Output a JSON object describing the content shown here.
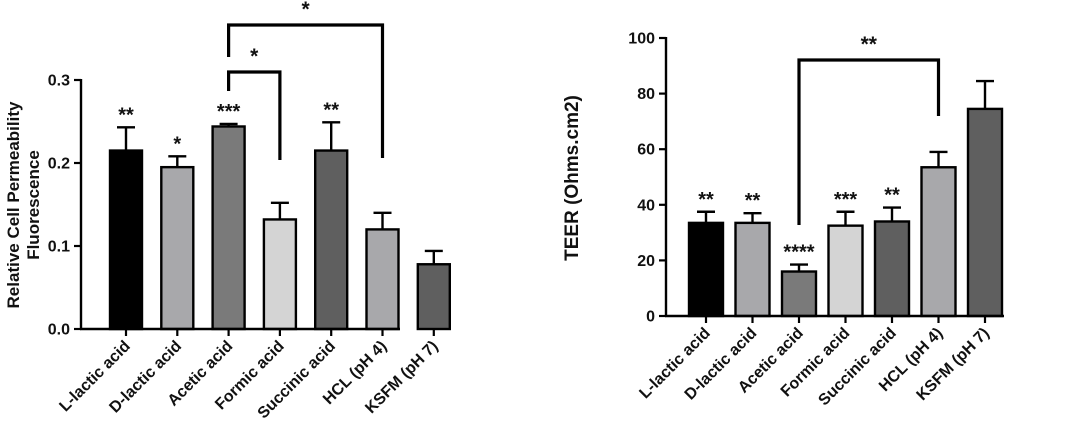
{
  "chart_data": [
    {
      "type": "bar",
      "title": "",
      "ylabel": [
        "Relative Cell Permeability",
        "Fluorescence"
      ],
      "xlabel": "",
      "ylim": [
        0,
        0.3
      ],
      "yticks": [
        "0.0",
        "0.1",
        "0.2",
        "0.3"
      ],
      "ytick_values": [
        0,
        0.1,
        0.2,
        0.3
      ],
      "categories": [
        "L-lactic acid",
        "D-lactic acid",
        "Acetic acid",
        "Formic acid",
        "Succinic acid",
        "HCL (pH 4)",
        "KSFM (pH 7)"
      ],
      "values": [
        0.215,
        0.195,
        0.244,
        0.132,
        0.215,
        0.12,
        0.078
      ],
      "errors": [
        0.028,
        0.013,
        0.003,
        0.02,
        0.034,
        0.02,
        0.016
      ],
      "significance": [
        "**",
        "*",
        "***",
        "",
        "**",
        "",
        ""
      ],
      "colors": [
        "#000000",
        "#a8a8ab",
        "#7a7a7a",
        "#d4d4d4",
        "#5f5f5f",
        "#a8a8ab",
        "#5f5f5f"
      ],
      "brackets": [
        {
          "from": "Acetic acid",
          "to": "Formic acid",
          "label": "*"
        },
        {
          "from": "Acetic acid",
          "to": "HCL (pH 4)",
          "label": "*"
        }
      ]
    },
    {
      "type": "bar",
      "title": "",
      "ylabel": "TEER (Ohms.cm2)",
      "xlabel": "",
      "ylim": [
        0,
        100
      ],
      "yticks": [
        "0",
        "20",
        "40",
        "60",
        "80",
        "100"
      ],
      "ytick_values": [
        0,
        20,
        40,
        60,
        80,
        100
      ],
      "categories": [
        "L-lactic acid",
        "D-lactic acid",
        "Acetic acid",
        "Formic acid",
        "Succinic acid",
        "HCL (pH 4)",
        "KSFM (pH 7)"
      ],
      "values": [
        33.5,
        33.5,
        16,
        32.5,
        34,
        53.5,
        74.5
      ],
      "errors": [
        4,
        3.5,
        2.5,
        5,
        5,
        5.5,
        10
      ],
      "significance": [
        "**",
        "**",
        "****",
        "***",
        "**",
        "",
        ""
      ],
      "colors": [
        "#000000",
        "#a8a8ab",
        "#7a7a7a",
        "#d4d4d4",
        "#5f5f5f",
        "#a8a8ab",
        "#5f5f5f"
      ],
      "brackets": [
        {
          "from": "Acetic acid",
          "to": "HCL (pH 4)",
          "label": "**"
        }
      ]
    }
  ]
}
